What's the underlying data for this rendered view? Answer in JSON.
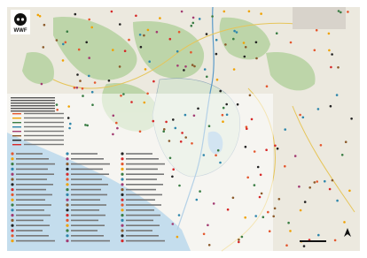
{
  "logo": {
    "text": "WWF"
  }
}
